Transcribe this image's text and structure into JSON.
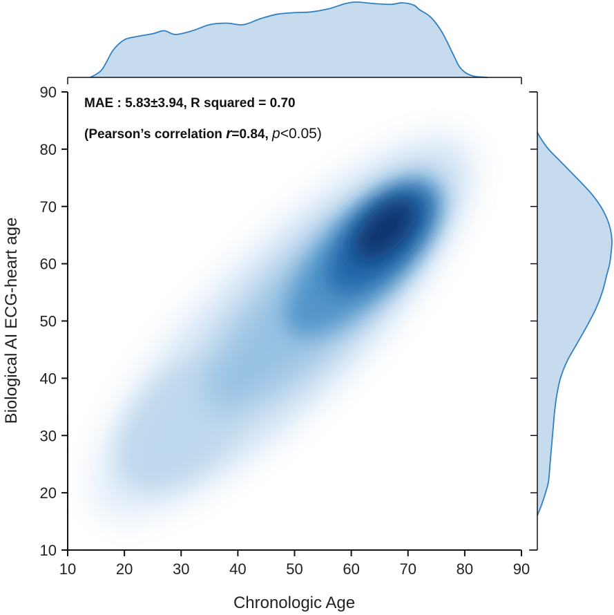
{
  "chart_data": {
    "type": "kde joint plot (2D density with marginal densities)",
    "xlabel": "Chronologic Age",
    "ylabel": "Biological AI ECG-heart age",
    "xlim": [
      10,
      90
    ],
    "ylim": [
      10,
      90
    ],
    "xticks": [
      10,
      20,
      30,
      40,
      50,
      60,
      70,
      80,
      90
    ],
    "yticks": [
      10,
      20,
      30,
      40,
      50,
      60,
      70,
      80,
      90
    ],
    "annotation": {
      "line1": "MAE : 5.83±3.94, R squared = 0.70",
      "line2_prefix": "(Pearson’s correlation ",
      "line2_r": "r",
      "line2_mid": "=0.84, ",
      "line2_p": "p",
      "line2_suffix": "<0.05)"
    },
    "density_peak": {
      "x": 64,
      "y": 64
    },
    "marginal_x": {
      "x": [
        14,
        16,
        18,
        20,
        22,
        25,
        27,
        29,
        32,
        35,
        38,
        41,
        44,
        47,
        50,
        53,
        56,
        59,
        61,
        64,
        67,
        69,
        71,
        72,
        74,
        76,
        78,
        79,
        80,
        81,
        82,
        84
      ],
      "density": [
        0.0,
        0.1,
        0.36,
        0.5,
        0.54,
        0.58,
        0.62,
        0.57,
        0.62,
        0.7,
        0.72,
        0.7,
        0.78,
        0.84,
        0.86,
        0.87,
        0.91,
        0.98,
        1.0,
        0.98,
        0.97,
        0.99,
        0.96,
        0.9,
        0.8,
        0.6,
        0.3,
        0.15,
        0.07,
        0.03,
        0.01,
        0.0
      ]
    },
    "marginal_y": {
      "y": [
        16,
        18,
        20,
        22,
        25,
        28,
        31,
        34,
        37,
        40,
        43,
        46,
        49,
        52,
        55,
        58,
        60,
        62,
        64,
        66,
        68,
        70,
        72,
        74,
        76,
        78,
        80,
        82,
        83
      ],
      "density": [
        0.0,
        0.06,
        0.11,
        0.15,
        0.17,
        0.19,
        0.21,
        0.23,
        0.26,
        0.31,
        0.4,
        0.53,
        0.66,
        0.78,
        0.87,
        0.93,
        0.97,
        0.99,
        1.0,
        0.98,
        0.93,
        0.85,
        0.74,
        0.6,
        0.45,
        0.3,
        0.15,
        0.04,
        0.0
      ]
    },
    "colors": {
      "density_dark": "#08306b",
      "density_mid": "#2f78b5",
      "density_light": "#c8ddf0",
      "marginal_fill": "#c6dbee",
      "marginal_line": "#2f7fc1",
      "axis": "#111111"
    }
  }
}
